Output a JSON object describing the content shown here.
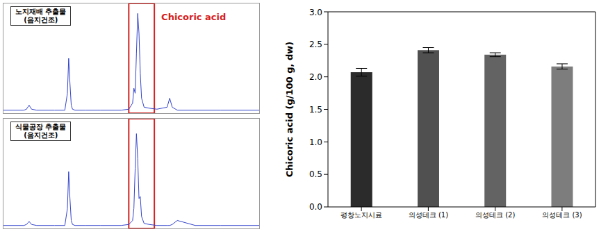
{
  "chart_data": [
    {
      "type": "line",
      "title": "노지재배 추출물",
      "subtitle": "(음지건조)",
      "annotation": "Chicoric acid",
      "highlight": [
        4.9,
        5.9
      ],
      "color": "#3344cc",
      "tick_labels": false,
      "xlim": [
        0,
        10
      ],
      "ylim": [
        0,
        110
      ],
      "x": [
        0,
        0.8,
        0.9,
        1.0,
        1.1,
        1.3,
        2.0,
        2.4,
        2.5,
        2.55,
        2.6,
        2.65,
        2.7,
        2.8,
        3.2,
        3.8,
        4.6,
        4.9,
        5.05,
        5.1,
        5.15,
        5.2,
        5.25,
        5.3,
        5.35,
        5.4,
        5.5,
        5.7,
        6.0,
        6.4,
        6.5,
        6.6,
        6.8,
        7.5,
        8.5,
        10
      ],
      "values": [
        3,
        3,
        4,
        8,
        4,
        3,
        3,
        3,
        20,
        55,
        30,
        8,
        4,
        3,
        3,
        3,
        3,
        4,
        10,
        25,
        20,
        60,
        100,
        80,
        40,
        15,
        6,
        5,
        4,
        6,
        15,
        6,
        3,
        3,
        3,
        3
      ]
    },
    {
      "type": "line",
      "title": "식물공장 추출물",
      "subtitle": "(음지건조)",
      "highlight": [
        4.9,
        5.9
      ],
      "color": "#3344cc",
      "tick_labels": false,
      "xlim": [
        0,
        10
      ],
      "ylim": [
        0,
        110
      ],
      "x": [
        0,
        0.8,
        0.9,
        1.0,
        1.1,
        1.3,
        2.0,
        2.4,
        2.5,
        2.55,
        2.6,
        2.65,
        2.7,
        2.8,
        3.2,
        3.8,
        4.6,
        4.9,
        5.05,
        5.1,
        5.15,
        5.2,
        5.25,
        5.3,
        5.35,
        5.4,
        5.5,
        5.7,
        6.0,
        6.4,
        6.5,
        6.6,
        6.8,
        7.5,
        8.5,
        10
      ],
      "values": [
        3,
        3,
        4,
        7,
        4,
        3,
        3,
        3,
        20,
        57,
        30,
        8,
        4,
        3,
        3,
        3,
        3,
        4,
        8,
        20,
        60,
        95,
        70,
        30,
        32,
        12,
        5,
        4,
        3,
        3,
        3,
        4,
        8,
        3,
        3,
        3
      ]
    },
    {
      "type": "bar",
      "y_label": "Chicoric acid (g/100 g, dw)",
      "categories": [
        "평창노지시료",
        "의성테크 (1)",
        "의성테크 (2)",
        "의성테크 (3)"
      ],
      "values": [
        2.07,
        2.41,
        2.34,
        2.16
      ],
      "errors": [
        0.06,
        0.04,
        0.03,
        0.04
      ],
      "colors": [
        "#2b2b2b",
        "#505050",
        "#636363",
        "#7d7d7d"
      ],
      "ylim": [
        0,
        3.0
      ],
      "yticks": [
        {
          "value": 0,
          "label": "0.0"
        },
        {
          "value": 0.5,
          "label": "0.5"
        },
        {
          "value": 1,
          "label": "1.0"
        },
        {
          "value": 1.5,
          "label": "1.5"
        },
        {
          "value": 2,
          "label": "2.0"
        },
        {
          "value": 2.5,
          "label": "2.5"
        },
        {
          "value": 3,
          "label": "3.0"
        }
      ]
    }
  ]
}
